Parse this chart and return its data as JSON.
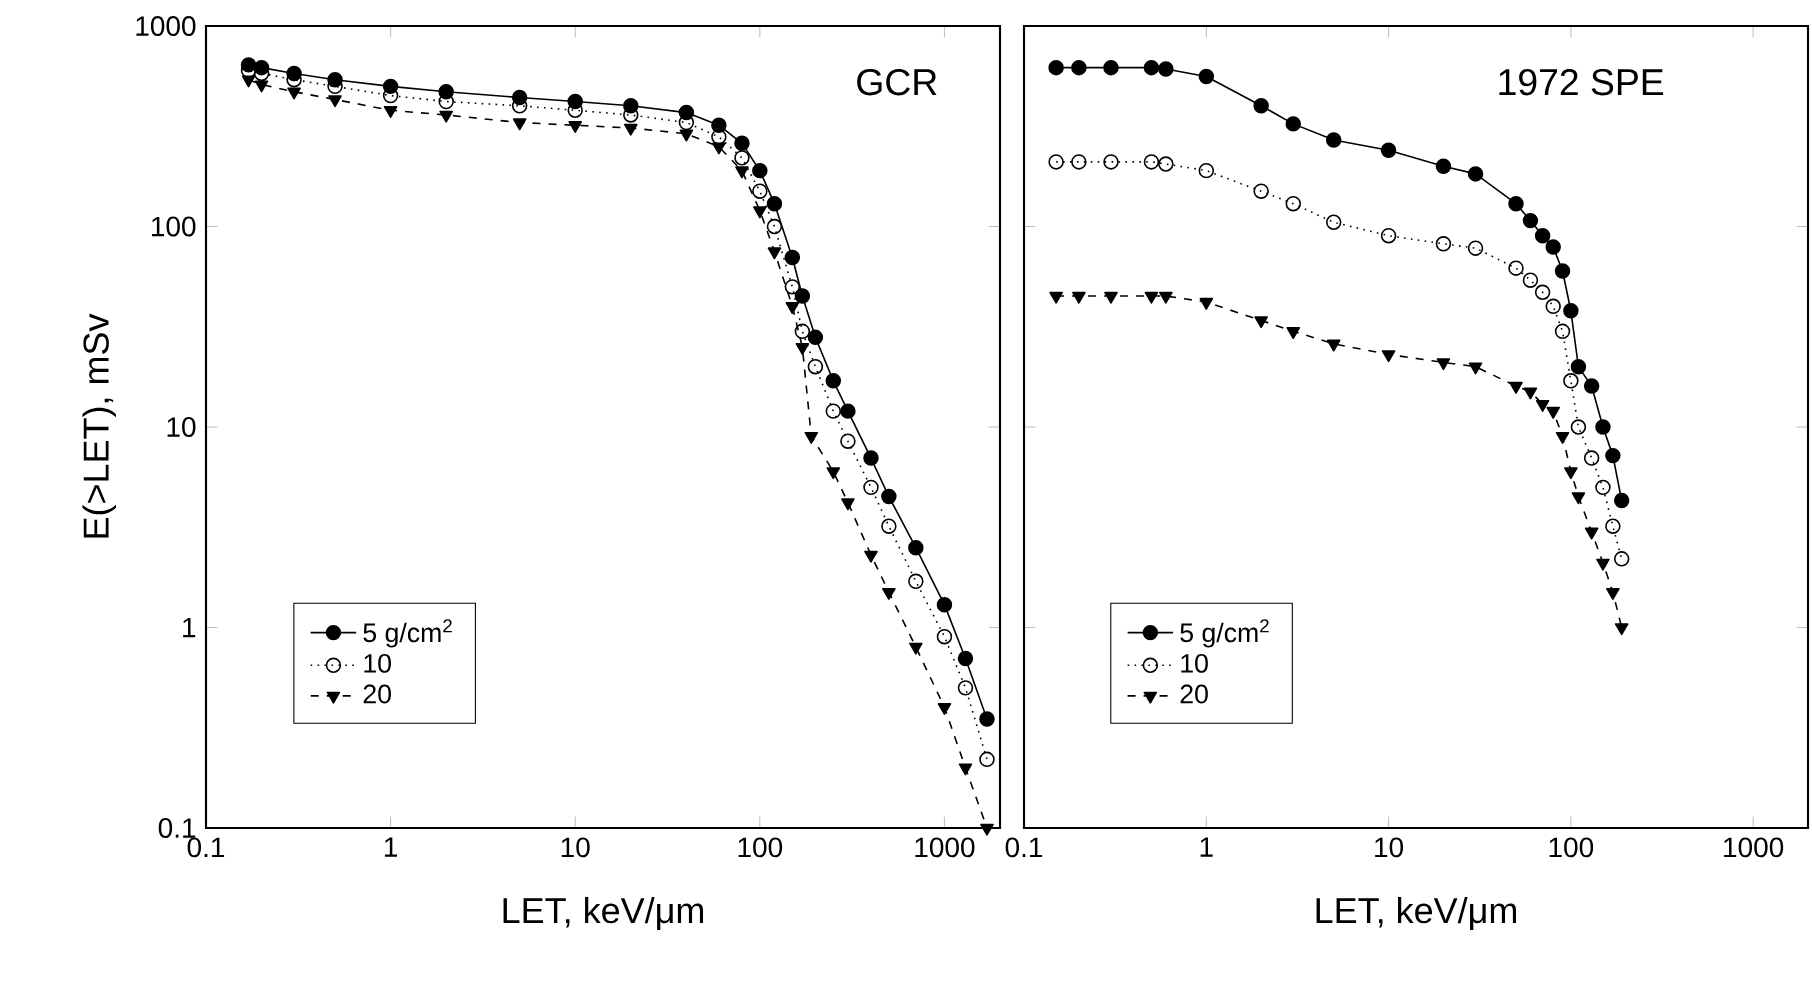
{
  "chart_data": [
    {
      "type": "line",
      "title": "GCR",
      "xlabel": "LET, keV/μm",
      "ylabel": "E(>LET), mSv",
      "log": "xy",
      "legend": "bottom left",
      "xlim": [
        0.1,
        2000
      ],
      "ylim": [
        0.1,
        1000
      ],
      "xticks": [
        0.1,
        1,
        10,
        100,
        1000
      ],
      "yticks": [
        0.1,
        1,
        10,
        100,
        1000
      ],
      "series": [
        {
          "name": "5 g/cm$^{2}$",
          "color": "#000000",
          "marker": "circle",
          "line_style": "solid",
          "x": [
            0.17,
            0.2,
            0.3,
            0.5,
            1,
            2,
            5,
            10,
            20,
            40,
            60,
            80,
            100,
            120,
            150,
            170,
            200,
            250,
            300,
            400,
            500,
            700,
            1000,
            1300,
            1700
          ],
          "values": [
            640,
            620,
            580,
            540,
            500,
            470,
            440,
            420,
            400,
            370,
            320,
            260,
            190,
            130,
            70,
            45,
            28,
            17,
            12,
            7,
            4.5,
            2.5,
            1.3,
            0.7,
            0.35
          ]
        },
        {
          "name": "10",
          "color": "#000000",
          "marker": "circle_open",
          "line_style": "dotted",
          "x": [
            0.17,
            0.2,
            0.3,
            0.5,
            1,
            2,
            5,
            10,
            20,
            40,
            60,
            80,
            100,
            120,
            150,
            170,
            200,
            250,
            300,
            400,
            500,
            700,
            1000,
            1300,
            1700
          ],
          "values": [
            600,
            580,
            540,
            500,
            450,
            420,
            400,
            380,
            360,
            330,
            280,
            220,
            150,
            100,
            50,
            30,
            20,
            12,
            8.5,
            5,
            3.2,
            1.7,
            0.9,
            0.5,
            0.22
          ]
        },
        {
          "name": "20",
          "color": "#000000",
          "marker": "triangle_down",
          "line_style": "dashed",
          "x": [
            0.17,
            0.2,
            0.3,
            0.5,
            1,
            2,
            5,
            10,
            20,
            40,
            60,
            80,
            100,
            120,
            150,
            170,
            190,
            250,
            300,
            400,
            500,
            700,
            1000,
            1300,
            1700
          ],
          "values": [
            540,
            510,
            470,
            430,
            380,
            360,
            330,
            320,
            310,
            290,
            250,
            190,
            120,
            75,
            40,
            25,
            9,
            6,
            4.2,
            2.3,
            1.5,
            0.8,
            0.4,
            0.2,
            0.1
          ]
        }
      ]
    },
    {
      "type": "line",
      "title": "1972 SPE",
      "xlabel": "LET, keV/μm",
      "log": "xy",
      "legend": "bottom left",
      "tick_labels": "x",
      "xlim": [
        0.1,
        2000
      ],
      "ylim": [
        0.1,
        1000
      ],
      "xticks": [
        0.1,
        1,
        10,
        100,
        1000
      ],
      "yticks": [
        0.1,
        1,
        10,
        100,
        1000
      ],
      "series": [
        {
          "name": "5 g/cm$^{2}$",
          "color": "#000000",
          "marker": "circle",
          "line_style": "solid",
          "x": [
            0.15,
            0.2,
            0.3,
            0.5,
            0.6,
            1,
            2,
            3,
            5,
            10,
            20,
            30,
            50,
            60,
            70,
            80,
            90,
            100,
            110,
            130,
            150,
            170,
            190
          ],
          "values": [
            620,
            620,
            620,
            620,
            610,
            560,
            400,
            325,
            270,
            240,
            200,
            183,
            130,
            107,
            90,
            79,
            60,
            38,
            20,
            16,
            10,
            7.2,
            4.3
          ]
        },
        {
          "name": "10",
          "color": "#000000",
          "marker": "circle_open",
          "line_style": "dotted",
          "x": [
            0.15,
            0.2,
            0.3,
            0.5,
            0.6,
            1,
            2,
            3,
            5,
            10,
            20,
            30,
            50,
            60,
            70,
            80,
            90,
            100,
            110,
            130,
            150,
            170,
            190
          ],
          "values": [
            210,
            210,
            210,
            210,
            205,
            190,
            150,
            130,
            105,
            90,
            82,
            78,
            62,
            54,
            47,
            40,
            30,
            17,
            10,
            7,
            5,
            3.2,
            2.2
          ]
        },
        {
          "name": "20",
          "color": "#000000",
          "marker": "triangle_down",
          "line_style": "dashed",
          "x": [
            0.15,
            0.2,
            0.3,
            0.5,
            0.6,
            1,
            2,
            3,
            5,
            10,
            20,
            30,
            50,
            60,
            70,
            80,
            90,
            100,
            110,
            130,
            150,
            170,
            190
          ],
          "values": [
            45,
            45,
            45,
            45,
            45,
            42,
            34,
            30,
            26,
            23,
            21,
            20,
            16,
            15,
            13,
            12,
            9,
            6,
            4.5,
            3,
            2.1,
            1.5,
            1.0
          ]
        }
      ]
    }
  ]
}
